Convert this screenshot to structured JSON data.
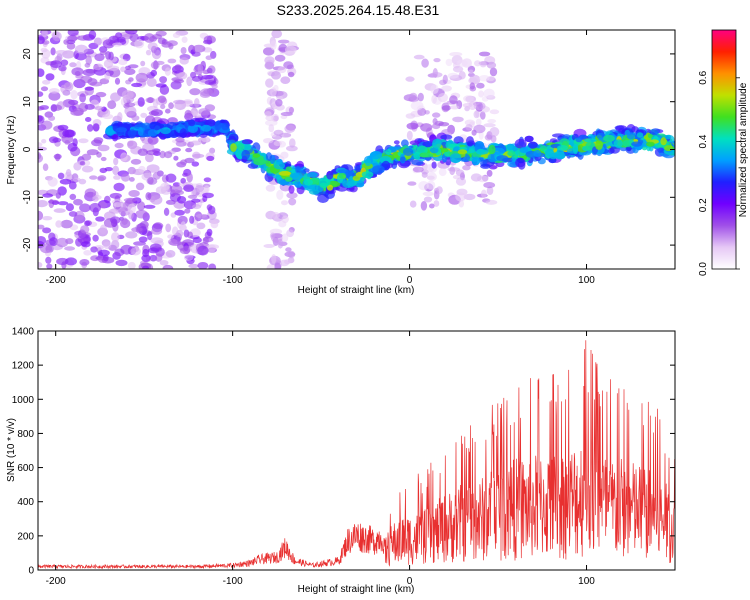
{
  "title": "S233.2025.264.15.48.E31",
  "colors": {
    "axis": "#000000",
    "snr_line": "#e83030",
    "background": "#ffffff"
  },
  "chart_data": [
    {
      "type": "heatmap",
      "name": "spectrogram",
      "xlabel": "Height of straight line (km)",
      "ylabel": "Frequency (Hz)",
      "xlim": [
        -210,
        150
      ],
      "ylim": [
        -25,
        25
      ],
      "xticks": [
        -200,
        -100,
        0,
        100
      ],
      "yticks": [
        -20,
        -10,
        0,
        10,
        20
      ],
      "ridge_center": [
        [
          -165,
          4
        ],
        [
          -140,
          4
        ],
        [
          -120,
          4.5
        ],
        [
          -104,
          4.5
        ],
        [
          -100,
          1
        ],
        [
          -90,
          -1
        ],
        [
          -80,
          -3
        ],
        [
          -70,
          -5
        ],
        [
          -60,
          -6
        ],
        [
          -50,
          -8
        ],
        [
          -40,
          -6
        ],
        [
          -30,
          -6
        ],
        [
          -20,
          -3
        ],
        [
          -10,
          -1
        ],
        [
          0,
          -1
        ],
        [
          20,
          0
        ],
        [
          40,
          -1
        ],
        [
          60,
          -1
        ],
        [
          80,
          0
        ],
        [
          100,
          1
        ],
        [
          120,
          2
        ],
        [
          140,
          2
        ],
        [
          150,
          0
        ]
      ],
      "colorbar": {
        "label": "Normalized spectral amplitude",
        "range": [
          0.0,
          0.75
        ],
        "ticks": [
          "0.0",
          "0.2",
          "0.4",
          "0.6"
        ],
        "colormap": [
          "#ffffff",
          "#e6c8f5",
          "#a050e8",
          "#7000ff",
          "#2020ff",
          "#00a0ff",
          "#00e0c0",
          "#40e020",
          "#c0e000",
          "#ff9000",
          "#ff2000",
          "#ff0080"
        ]
      }
    },
    {
      "type": "line",
      "name": "snr",
      "xlabel": "Height of straight line (km)",
      "ylabel": "SNR (10 * v/v)",
      "xlim": [
        -210,
        150
      ],
      "ylim": [
        0,
        1400
      ],
      "xticks": [
        -200,
        -100,
        0,
        100
      ],
      "yticks": [
        0,
        200,
        400,
        600,
        800,
        1000,
        1200,
        1400
      ],
      "envelope": [
        [
          -210,
          30
        ],
        [
          -120,
          30
        ],
        [
          -100,
          40
        ],
        [
          -90,
          60
        ],
        [
          -85,
          90
        ],
        [
          -75,
          110
        ],
        [
          -70,
          200
        ],
        [
          -65,
          80
        ],
        [
          -55,
          40
        ],
        [
          -40,
          80
        ],
        [
          -35,
          250
        ],
        [
          -30,
          300
        ],
        [
          -20,
          250
        ],
        [
          -15,
          300
        ],
        [
          -10,
          450
        ],
        [
          -5,
          550
        ],
        [
          0,
          550
        ],
        [
          10,
          600
        ],
        [
          20,
          750
        ],
        [
          30,
          850
        ],
        [
          40,
          900
        ],
        [
          50,
          1050
        ],
        [
          60,
          1100
        ],
        [
          75,
          1150
        ],
        [
          90,
          1200
        ],
        [
          100,
          1400
        ],
        [
          110,
          1150
        ],
        [
          120,
          1100
        ],
        [
          130,
          1050
        ],
        [
          140,
          950
        ],
        [
          150,
          750
        ]
      ]
    }
  ]
}
